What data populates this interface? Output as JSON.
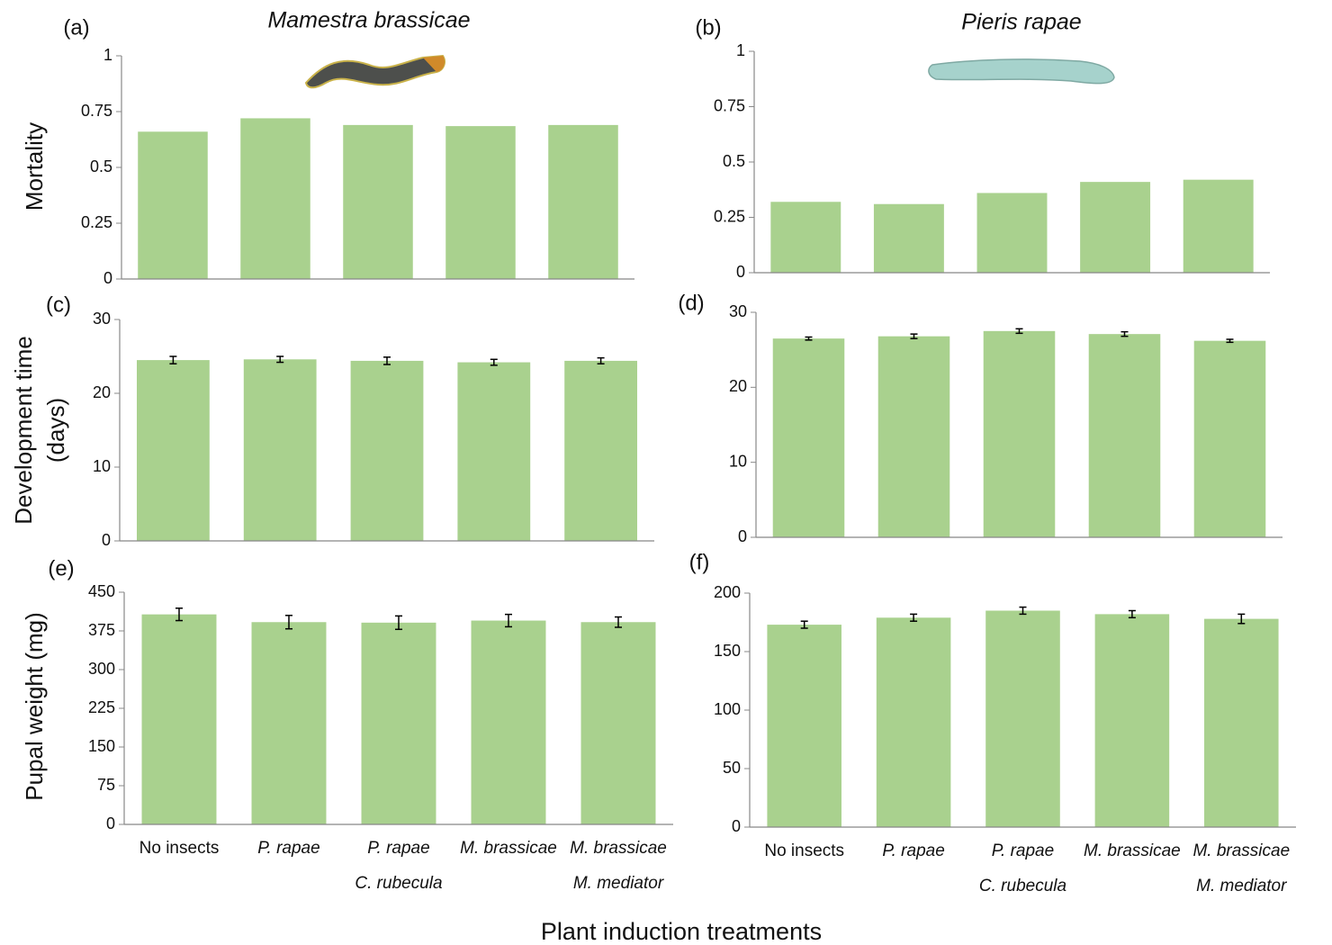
{
  "chart_data": [
    {
      "type": "bar",
      "panel": "(a)",
      "title": "Mamestra brassicae",
      "ylabel": [
        "Mortality"
      ],
      "color": "#a9d18e",
      "values": [
        0.66,
        0.72,
        0.69,
        0.685,
        0.69
      ],
      "ylim": [
        0,
        1
      ],
      "yticks": [
        0,
        0.25,
        0.5,
        0.75,
        1
      ]
    },
    {
      "type": "bar",
      "panel": "(b)",
      "title": "Pieris rapae",
      "color": "#a9d18e",
      "values": [
        0.32,
        0.31,
        0.36,
        0.41,
        0.42
      ],
      "ylim": [
        0,
        1
      ],
      "yticks": [
        0,
        0.25,
        0.5,
        0.75,
        1
      ]
    },
    {
      "type": "bar",
      "panel": "(c)",
      "ylabel": [
        "Development time",
        "(days)"
      ],
      "color": "#a9d18e",
      "values": [
        24.5,
        24.6,
        24.4,
        24.2,
        24.4
      ],
      "errors": [
        0.5,
        0.4,
        0.5,
        0.4,
        0.4
      ],
      "ylim": [
        0,
        30
      ],
      "yticks": [
        0,
        10,
        20,
        30
      ]
    },
    {
      "type": "bar",
      "panel": "(d)",
      "color": "#a9d18e",
      "values": [
        26.5,
        26.8,
        27.5,
        27.1,
        26.2
      ],
      "errors": [
        0.2,
        0.3,
        0.3,
        0.3,
        0.2
      ],
      "ylim": [
        0,
        30
      ],
      "yticks": [
        0,
        10,
        20,
        30
      ]
    },
    {
      "type": "bar",
      "panel": "(e)",
      "ylabel": [
        "Pupal weight  (mg)"
      ],
      "color": "#a9d18e",
      "categories": [
        [
          "No insects"
        ],
        [
          "P. rapae"
        ],
        [
          "P. rapae",
          "C. rubecula"
        ],
        [
          "M. brassicae"
        ],
        [
          "M. brassicae",
          "M. mediator"
        ]
      ],
      "values": [
        407,
        392,
        391,
        395,
        392
      ],
      "errors": [
        12,
        13,
        13,
        12,
        10
      ],
      "ylim": [
        0,
        450
      ],
      "yticks": [
        0,
        75,
        150,
        225,
        300,
        375,
        450
      ]
    },
    {
      "type": "bar",
      "panel": "(f)",
      "color": "#a9d18e",
      "categories": [
        [
          "No insects"
        ],
        [
          "P. rapae"
        ],
        [
          "P. rapae",
          "C. rubecula"
        ],
        [
          "M. brassicae"
        ],
        [
          "M. brassicae",
          "M. mediator"
        ]
      ],
      "values": [
        173,
        179,
        185,
        182,
        178
      ],
      "errors": [
        3,
        3,
        3,
        3,
        4
      ],
      "ylim": [
        0,
        200
      ],
      "yticks": [
        0,
        50,
        100,
        150,
        200
      ]
    }
  ],
  "xlabel": "Plant induction treatments"
}
